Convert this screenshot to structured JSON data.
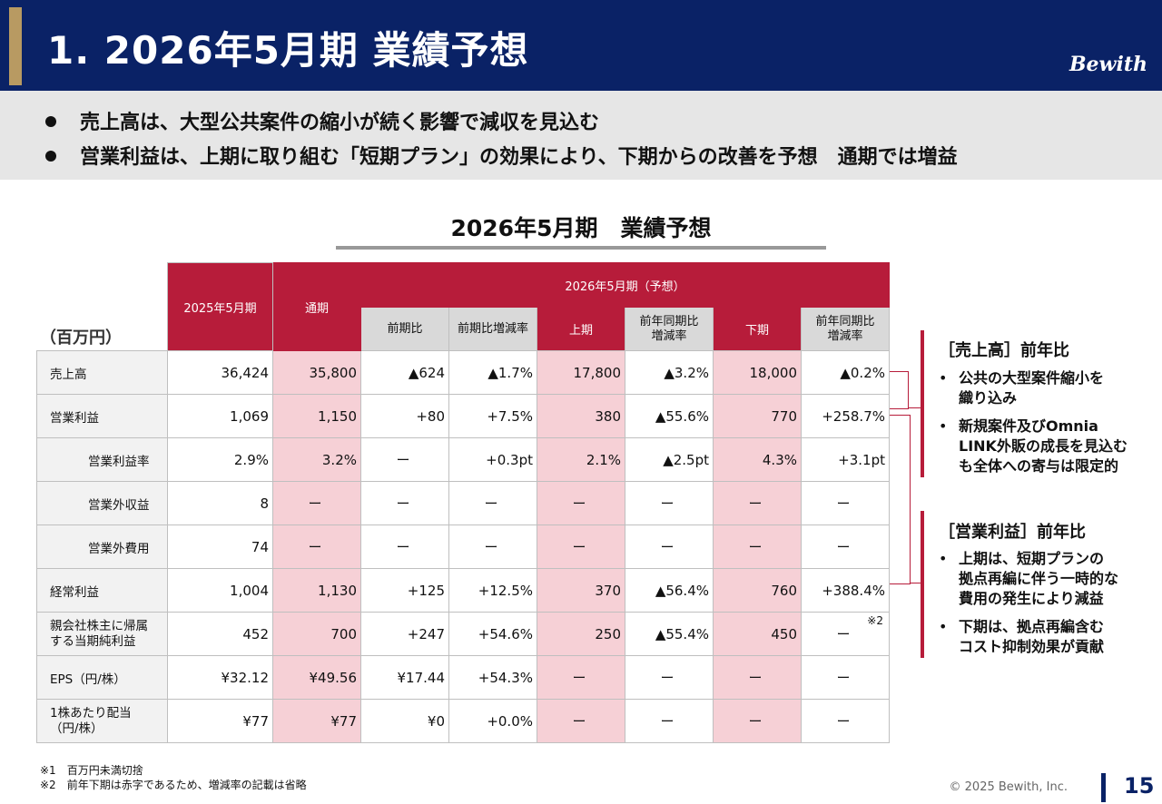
{
  "header": {
    "title": "1. 2026年5月期 業績予想",
    "logo": "Bewith"
  },
  "summary": {
    "bullets": [
      "売上高は、大型公共案件の縮小が続く影響で減収を見込む",
      "営業利益は、上期に取り組む「短期プラン」の効果により、下期からの改善を予想　通期では増益"
    ]
  },
  "table_title": "2026年5月期　業績予想",
  "table": {
    "unit": "（百万円）",
    "headers": {
      "prev_fy": "2025年5月期",
      "forecast_group": "2026年5月期（予想）",
      "full_year": "通期",
      "yoy": "前期比",
      "yoy_rate": "前期比増減率",
      "h1": "上期",
      "h1_rate_l1": "前年同期比",
      "h1_rate_l2": "増減率",
      "h2": "下期",
      "h2_rate_l1": "前年同期比",
      "h2_rate_l2": "増減率"
    },
    "rows": [
      {
        "label": "売上高",
        "indent": false,
        "cells": [
          "36,424",
          "35,800",
          "▲624",
          "▲1.7%",
          "17,800",
          "▲3.2%",
          "18,000",
          "▲0.2%"
        ]
      },
      {
        "label": "営業利益",
        "indent": false,
        "cells": [
          "1,069",
          "1,150",
          "+80",
          "+7.5%",
          "380",
          "▲55.6%",
          "770",
          "+258.7%"
        ]
      },
      {
        "label": "営業利益率",
        "indent": true,
        "cells": [
          "2.9%",
          "3.2%",
          "ー",
          "+0.3pt",
          "2.1%",
          "▲2.5pt",
          "4.3%",
          "+3.1pt"
        ]
      },
      {
        "label": "営業外収益",
        "indent": true,
        "cells": [
          "8",
          "ー",
          "ー",
          "ー",
          "ー",
          "ー",
          "ー",
          "ー"
        ]
      },
      {
        "label": "営業外費用",
        "indent": true,
        "cells": [
          "74",
          "ー",
          "ー",
          "ー",
          "ー",
          "ー",
          "ー",
          "ー"
        ]
      },
      {
        "label": "経常利益",
        "indent": false,
        "cells": [
          "1,004",
          "1,130",
          "+125",
          "+12.5%",
          "370",
          "▲56.4%",
          "760",
          "+388.4%"
        ]
      },
      {
        "label_l1": "親会社株主に帰属",
        "label_l2": "する当期純利益",
        "indent": false,
        "cells": [
          "452",
          "700",
          "+247",
          "+54.6%",
          "250",
          "▲55.4%",
          "450",
          "ー"
        ],
        "note": "※2"
      },
      {
        "label": "EPS（円/株）",
        "indent": false,
        "cells": [
          "¥32.12",
          "¥49.56",
          "¥17.44",
          "+54.3%",
          "ー",
          "ー",
          "ー",
          "ー"
        ]
      },
      {
        "label_l1": "1株あたり配当",
        "label_l2": "（円/株）",
        "indent": false,
        "cells": [
          "¥77",
          "¥77",
          "¥0",
          "+0.0%",
          "ー",
          "ー",
          "ー",
          "ー"
        ]
      }
    ]
  },
  "sidebar": {
    "sales": {
      "title": "［売上高］前年比",
      "bullets": [
        [
          "公共の大型案件縮小を",
          "織り込み"
        ],
        [
          "新規案件及びOmnia",
          "LINK外販の成長を見込む",
          "も全体への寄与は限定的"
        ]
      ]
    },
    "op_profit": {
      "title": "［営業利益］前年比",
      "bullets": [
        [
          "上期は、短期プランの",
          "拠点再編に伴う一時的な",
          "費用の発生により減益"
        ],
        [
          "下期は、拠点再編含む",
          "コスト抑制効果が貢献"
        ]
      ]
    },
    "bullet_mark": "•"
  },
  "footnotes": [
    "※1　百万円未満切捨",
    "※2　前年下期は赤字であるため、増減率の記載は省略"
  ],
  "footer": {
    "copyright": "© 2025 Bewith, Inc.",
    "page": "15"
  },
  "colors": {
    "navy": "#0a2266",
    "crimson": "#b71c3a",
    "pink": "#f6d0d6",
    "gold": "#b89a62"
  }
}
